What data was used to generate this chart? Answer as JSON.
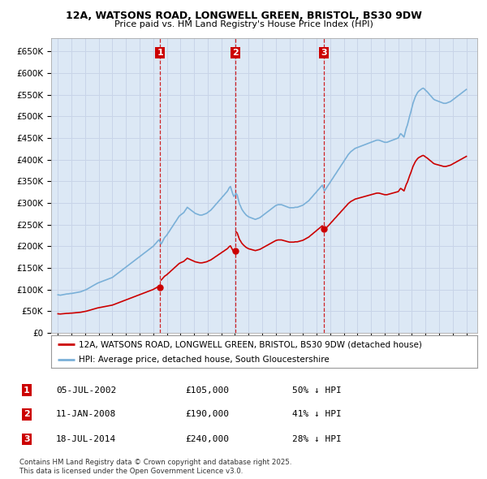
{
  "title1": "12A, WATSONS ROAD, LONGWELL GREEN, BRISTOL, BS30 9DW",
  "title2": "Price paid vs. HM Land Registry's House Price Index (HPI)",
  "background_color": "#ffffff",
  "grid_color": "#c8d4e8",
  "plot_bg": "#dce8f5",
  "hpi_color": "#7ab0d8",
  "price_color": "#cc0000",
  "vline_color": "#cc0000",
  "purchases": [
    {
      "date_num": 2002.51,
      "price": 105000,
      "label": "1"
    },
    {
      "date_num": 2008.03,
      "price": 190000,
      "label": "2"
    },
    {
      "date_num": 2014.54,
      "price": 240000,
      "label": "3"
    }
  ],
  "legend_label_price": "12A, WATSONS ROAD, LONGWELL GREEN, BRISTOL, BS30 9DW (detached house)",
  "legend_label_hpi": "HPI: Average price, detached house, South Gloucestershire",
  "table_rows": [
    {
      "num": "1",
      "date": "05-JUL-2002",
      "price": "£105,000",
      "pct": "50% ↓ HPI"
    },
    {
      "num": "2",
      "date": "11-JAN-2008",
      "price": "£190,000",
      "pct": "41% ↓ HPI"
    },
    {
      "num": "3",
      "date": "18-JUL-2014",
      "price": "£240,000",
      "pct": "28% ↓ HPI"
    }
  ],
  "footnote": "Contains HM Land Registry data © Crown copyright and database right 2025.\nThis data is licensed under the Open Government Licence v3.0.",
  "ylim": [
    0,
    680000
  ],
  "xlim": [
    1994.5,
    2025.8
  ],
  "hpi_data": {
    "years": [
      1995.0,
      1995.08,
      1995.17,
      1995.25,
      1995.33,
      1995.42,
      1995.5,
      1995.58,
      1995.67,
      1995.75,
      1995.83,
      1995.92,
      1996.0,
      1996.08,
      1996.17,
      1996.25,
      1996.33,
      1996.42,
      1996.5,
      1996.58,
      1996.67,
      1996.75,
      1996.83,
      1996.92,
      1997.0,
      1997.08,
      1997.17,
      1997.25,
      1997.33,
      1997.42,
      1997.5,
      1997.58,
      1997.67,
      1997.75,
      1997.83,
      1997.92,
      1998.0,
      1998.08,
      1998.17,
      1998.25,
      1998.33,
      1998.42,
      1998.5,
      1998.58,
      1998.67,
      1998.75,
      1998.83,
      1998.92,
      1999.0,
      1999.08,
      1999.17,
      1999.25,
      1999.33,
      1999.42,
      1999.5,
      1999.58,
      1999.67,
      1999.75,
      1999.83,
      1999.92,
      2000.0,
      2000.08,
      2000.17,
      2000.25,
      2000.33,
      2000.42,
      2000.5,
      2000.58,
      2000.67,
      2000.75,
      2000.83,
      2000.92,
      2001.0,
      2001.08,
      2001.17,
      2001.25,
      2001.33,
      2001.42,
      2001.5,
      2001.58,
      2001.67,
      2001.75,
      2001.83,
      2001.92,
      2002.0,
      2002.08,
      2002.17,
      2002.25,
      2002.33,
      2002.42,
      2002.5,
      2002.58,
      2002.67,
      2002.75,
      2002.83,
      2002.92,
      2003.0,
      2003.08,
      2003.17,
      2003.25,
      2003.33,
      2003.42,
      2003.5,
      2003.58,
      2003.67,
      2003.75,
      2003.83,
      2003.92,
      2004.0,
      2004.08,
      2004.17,
      2004.25,
      2004.33,
      2004.42,
      2004.5,
      2004.58,
      2004.67,
      2004.75,
      2004.83,
      2004.92,
      2005.0,
      2005.08,
      2005.17,
      2005.25,
      2005.33,
      2005.42,
      2005.5,
      2005.58,
      2005.67,
      2005.75,
      2005.83,
      2005.92,
      2006.0,
      2006.08,
      2006.17,
      2006.25,
      2006.33,
      2006.42,
      2006.5,
      2006.58,
      2006.67,
      2006.75,
      2006.83,
      2006.92,
      2007.0,
      2007.08,
      2007.17,
      2007.25,
      2007.33,
      2007.42,
      2007.5,
      2007.58,
      2007.67,
      2007.75,
      2007.83,
      2007.92,
      2008.0,
      2008.08,
      2008.17,
      2008.25,
      2008.33,
      2008.42,
      2008.5,
      2008.58,
      2008.67,
      2008.75,
      2008.83,
      2008.92,
      2009.0,
      2009.08,
      2009.17,
      2009.25,
      2009.33,
      2009.42,
      2009.5,
      2009.58,
      2009.67,
      2009.75,
      2009.83,
      2009.92,
      2010.0,
      2010.08,
      2010.17,
      2010.25,
      2010.33,
      2010.42,
      2010.5,
      2010.58,
      2010.67,
      2010.75,
      2010.83,
      2010.92,
      2011.0,
      2011.08,
      2011.17,
      2011.25,
      2011.33,
      2011.42,
      2011.5,
      2011.58,
      2011.67,
      2011.75,
      2011.83,
      2011.92,
      2012.0,
      2012.08,
      2012.17,
      2012.25,
      2012.33,
      2012.42,
      2012.5,
      2012.58,
      2012.67,
      2012.75,
      2012.83,
      2012.92,
      2013.0,
      2013.08,
      2013.17,
      2013.25,
      2013.33,
      2013.42,
      2013.5,
      2013.58,
      2013.67,
      2013.75,
      2013.83,
      2013.92,
      2014.0,
      2014.08,
      2014.17,
      2014.25,
      2014.33,
      2014.42,
      2014.5,
      2014.58,
      2014.67,
      2014.75,
      2014.83,
      2014.92,
      2015.0,
      2015.08,
      2015.17,
      2015.25,
      2015.33,
      2015.42,
      2015.5,
      2015.58,
      2015.67,
      2015.75,
      2015.83,
      2015.92,
      2016.0,
      2016.08,
      2016.17,
      2016.25,
      2016.33,
      2016.42,
      2016.5,
      2016.58,
      2016.67,
      2016.75,
      2016.83,
      2016.92,
      2017.0,
      2017.08,
      2017.17,
      2017.25,
      2017.33,
      2017.42,
      2017.5,
      2017.58,
      2017.67,
      2017.75,
      2017.83,
      2017.92,
      2018.0,
      2018.08,
      2018.17,
      2018.25,
      2018.33,
      2018.42,
      2018.5,
      2018.58,
      2018.67,
      2018.75,
      2018.83,
      2018.92,
      2019.0,
      2019.08,
      2019.17,
      2019.25,
      2019.33,
      2019.42,
      2019.5,
      2019.58,
      2019.67,
      2019.75,
      2019.83,
      2019.92,
      2020.0,
      2020.08,
      2020.17,
      2020.25,
      2020.33,
      2020.42,
      2020.5,
      2020.58,
      2020.67,
      2020.75,
      2020.83,
      2020.92,
      2021.0,
      2021.08,
      2021.17,
      2021.25,
      2021.33,
      2021.42,
      2021.5,
      2021.58,
      2021.67,
      2021.75,
      2021.83,
      2021.92,
      2022.0,
      2022.08,
      2022.17,
      2022.25,
      2022.33,
      2022.42,
      2022.5,
      2022.58,
      2022.67,
      2022.75,
      2022.83,
      2022.92,
      2023.0,
      2023.08,
      2023.17,
      2023.25,
      2023.33,
      2023.42,
      2023.5,
      2023.58,
      2023.67,
      2023.75,
      2023.83,
      2023.92,
      2024.0,
      2024.08,
      2024.17,
      2024.25,
      2024.33,
      2024.42,
      2024.5,
      2024.58,
      2024.67,
      2024.75,
      2024.83,
      2024.92,
      2025.0
    ],
    "values": [
      88000,
      87500,
      87000,
      87500,
      88000,
      88500,
      89000,
      89500,
      90000,
      90000,
      90500,
      91000,
      91000,
      91500,
      92000,
      92500,
      93000,
      93500,
      94000,
      94500,
      95000,
      96000,
      97000,
      98000,
      99000,
      100000,
      101500,
      103000,
      104500,
      106000,
      107500,
      109000,
      110500,
      112000,
      113500,
      115000,
      116000,
      117000,
      118000,
      119000,
      120000,
      121000,
      122000,
      123000,
      124000,
      125000,
      126000,
      127000,
      128000,
      130000,
      132000,
      134000,
      136000,
      138000,
      140000,
      142000,
      144000,
      146000,
      148000,
      150000,
      152000,
      154000,
      156000,
      158000,
      160000,
      162000,
      164000,
      166000,
      168000,
      170000,
      172000,
      174000,
      176000,
      178000,
      180000,
      182000,
      184000,
      186000,
      188000,
      190000,
      192000,
      194000,
      196000,
      198000,
      200000,
      203000,
      206000,
      209000,
      212000,
      215000,
      210000,
      205000,
      210000,
      215000,
      220000,
      223000,
      226000,
      230000,
      234000,
      238000,
      242000,
      246000,
      250000,
      254000,
      258000,
      262000,
      266000,
      270000,
      272000,
      274000,
      276000,
      278000,
      282000,
      286000,
      290000,
      288000,
      286000,
      284000,
      282000,
      280000,
      278000,
      276000,
      275000,
      274000,
      273000,
      272000,
      272000,
      272000,
      273000,
      274000,
      275000,
      276000,
      278000,
      280000,
      282000,
      284000,
      287000,
      290000,
      293000,
      296000,
      299000,
      302000,
      305000,
      308000,
      311000,
      314000,
      317000,
      320000,
      323000,
      326000,
      330000,
      335000,
      338000,
      330000,
      322000,
      315000,
      318000,
      322000,
      318000,
      308000,
      298000,
      292000,
      286000,
      282000,
      278000,
      275000,
      272000,
      270000,
      268000,
      267000,
      266000,
      265000,
      264000,
      263000,
      262000,
      263000,
      264000,
      265000,
      266000,
      268000,
      270000,
      272000,
      274000,
      276000,
      278000,
      280000,
      282000,
      284000,
      286000,
      288000,
      290000,
      292000,
      294000,
      295000,
      296000,
      296000,
      296000,
      296000,
      295000,
      294000,
      293000,
      292000,
      291000,
      290000,
      289000,
      289000,
      289000,
      289000,
      289000,
      290000,
      290000,
      290000,
      291000,
      292000,
      293000,
      294000,
      295000,
      297000,
      299000,
      301000,
      303000,
      305000,
      308000,
      311000,
      314000,
      317000,
      320000,
      323000,
      326000,
      329000,
      332000,
      335000,
      338000,
      341000,
      334000,
      328000,
      332000,
      336000,
      340000,
      344000,
      348000,
      352000,
      356000,
      360000,
      364000,
      368000,
      372000,
      376000,
      380000,
      384000,
      388000,
      392000,
      396000,
      400000,
      404000,
      408000,
      412000,
      415000,
      418000,
      420000,
      422000,
      424000,
      426000,
      427000,
      428000,
      429000,
      430000,
      431000,
      432000,
      433000,
      434000,
      435000,
      436000,
      437000,
      438000,
      439000,
      440000,
      441000,
      442000,
      443000,
      444000,
      445000,
      445000,
      445000,
      444000,
      443000,
      442000,
      441000,
      440000,
      440000,
      440000,
      441000,
      442000,
      443000,
      444000,
      445000,
      446000,
      447000,
      448000,
      449000,
      450000,
      455000,
      460000,
      458000,
      455000,
      452000,
      462000,
      472000,
      480000,
      490000,
      500000,
      510000,
      520000,
      530000,
      538000,
      545000,
      550000,
      555000,
      558000,
      560000,
      562000,
      564000,
      565000,
      563000,
      560000,
      558000,
      555000,
      552000,
      549000,
      546000,
      543000,
      540000,
      538000,
      537000,
      536000,
      535000,
      534000,
      533000,
      532000,
      531000,
      530000,
      530000,
      530000,
      531000,
      532000,
      533000,
      534000,
      536000,
      538000,
      540000,
      542000,
      544000,
      546000,
      548000,
      550000,
      552000,
      554000,
      556000,
      558000,
      560000,
      562000
    ]
  }
}
